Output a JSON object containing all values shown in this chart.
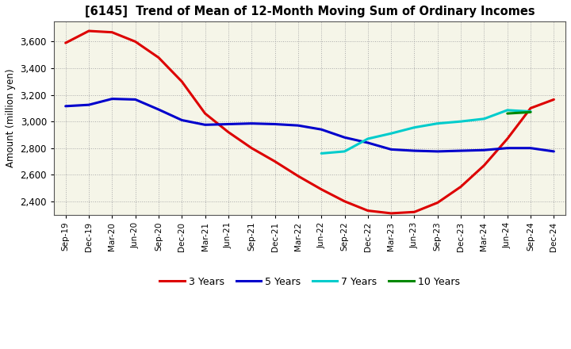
{
  "title": "[6145]  Trend of Mean of 12-Month Moving Sum of Ordinary Incomes",
  "ylabel": "Amount (million yen)",
  "ylim": [
    2300,
    3750
  ],
  "yticks": [
    2400,
    2600,
    2800,
    3000,
    3200,
    3400,
    3600
  ],
  "x_labels": [
    "Sep-19",
    "Dec-19",
    "Mar-20",
    "Jun-20",
    "Sep-20",
    "Dec-20",
    "Mar-21",
    "Jun-21",
    "Sep-21",
    "Dec-21",
    "Mar-22",
    "Jun-22",
    "Sep-22",
    "Dec-22",
    "Mar-23",
    "Jun-23",
    "Sep-23",
    "Dec-23",
    "Mar-24",
    "Jun-24",
    "Sep-24",
    "Dec-24"
  ],
  "series_3y": [
    3590,
    3680,
    3670,
    3600,
    3480,
    3300,
    3060,
    2920,
    2800,
    2700,
    2590,
    2490,
    2400,
    2330,
    2310,
    2320,
    2390,
    2510,
    2670,
    2870,
    3100,
    3165
  ],
  "series_5y": [
    3115,
    3125,
    3170,
    3165,
    3090,
    3010,
    2975,
    2980,
    2985,
    2980,
    2970,
    2940,
    2880,
    2840,
    2790,
    2780,
    2775,
    2780,
    2785,
    2800,
    2800,
    2775
  ],
  "series_7y": [
    null,
    null,
    null,
    null,
    null,
    null,
    null,
    null,
    null,
    null,
    null,
    2760,
    2775,
    2870,
    2910,
    2955,
    2985,
    3000,
    3020,
    3085,
    3075,
    null
  ],
  "series_10y": [
    null,
    null,
    null,
    null,
    null,
    null,
    null,
    null,
    null,
    null,
    null,
    null,
    null,
    null,
    null,
    null,
    null,
    null,
    null,
    3060,
    3070,
    null
  ],
  "color_3y": "#dd0000",
  "color_5y": "#0000cc",
  "color_7y": "#00cccc",
  "color_10y": "#008800",
  "linewidth": 2.2,
  "bg_color": "#ffffff",
  "plot_bg_color": "#f5f5e8",
  "legend_labels": [
    "3 Years",
    "5 Years",
    "7 Years",
    "10 Years"
  ]
}
